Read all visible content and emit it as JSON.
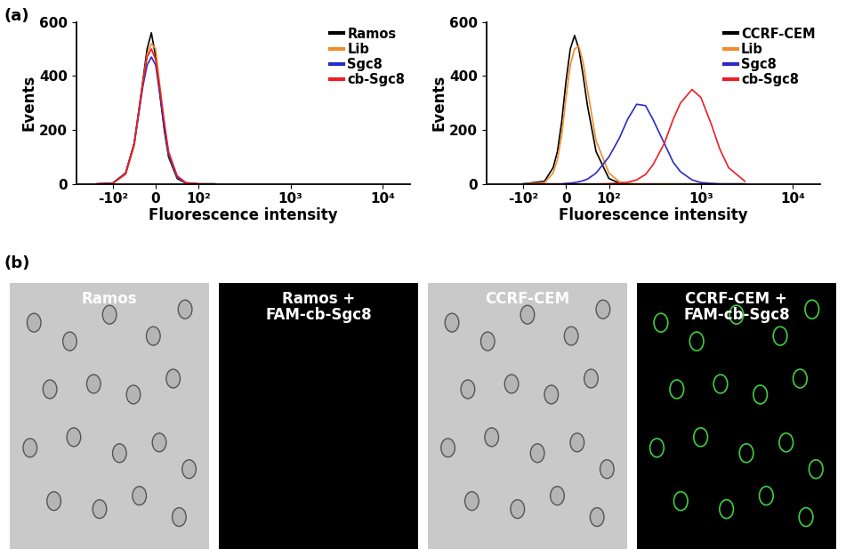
{
  "chart_data": [
    {
      "type": "line",
      "x_label": "Fluorescence intensity",
      "y_label": "Events",
      "log": "x",
      "legend": "upper right",
      "xlim": [
        -250,
        20000
      ],
      "xticks": [
        {
          "value": -100,
          "label": "-10²"
        },
        0,
        {
          "value": 100,
          "label": "10²"
        },
        {
          "value": 1000,
          "label": "10³"
        },
        {
          "value": 10000,
          "label": "10⁴"
        }
      ],
      "ylim": [
        0,
        600
      ],
      "yticks": [
        0,
        200,
        400,
        600
      ],
      "x": [
        -150,
        -100,
        -70,
        -50,
        -30,
        -20,
        -10,
        0,
        10,
        20,
        30,
        50,
        70,
        100,
        150
      ],
      "series": [
        {
          "name": "Ramos",
          "color": "#000000",
          "values": [
            0,
            3,
            40,
            150,
            380,
            500,
            560,
            470,
            330,
            200,
            100,
            20,
            3,
            0,
            0
          ]
        },
        {
          "name": "Lib",
          "color": "#f28c28",
          "values": [
            0,
            2,
            35,
            140,
            370,
            480,
            520,
            500,
            360,
            220,
            110,
            25,
            4,
            0,
            0
          ]
        },
        {
          "name": "Sgc8",
          "color": "#2a2ac8",
          "values": [
            0,
            3,
            40,
            150,
            360,
            440,
            470,
            440,
            330,
            210,
            110,
            25,
            4,
            0,
            0
          ]
        },
        {
          "name": "cb-Sgc8",
          "color": "#ee1c25",
          "values": [
            0,
            2,
            38,
            150,
            370,
            470,
            500,
            460,
            350,
            230,
            120,
            30,
            5,
            0,
            0
          ]
        }
      ]
    },
    {
      "type": "line",
      "x_label": "Fluorescence intensity",
      "y_label": "Events",
      "log": "x",
      "legend": "upper right",
      "xlim": [
        -250,
        20000
      ],
      "xticks": [
        {
          "value": -100,
          "label": "-10²"
        },
        0,
        {
          "value": 100,
          "label": "10²"
        },
        {
          "value": 1000,
          "label": "10³"
        },
        {
          "value": 10000,
          "label": "10⁴"
        }
      ],
      "ylim": [
        0,
        600
      ],
      "yticks": [
        0,
        200,
        400,
        600
      ],
      "x": [
        -100,
        -50,
        -30,
        -20,
        -10,
        0,
        10,
        20,
        30,
        40,
        50,
        70,
        100,
        130,
        160,
        200,
        250,
        300,
        400,
        500,
        600,
        800,
        1000,
        1300,
        1600,
        2000,
        3000
      ],
      "series": [
        {
          "name": "CCRF-CEM",
          "color": "#000000",
          "values": [
            0,
            10,
            60,
            120,
            230,
            380,
            500,
            550,
            500,
            400,
            290,
            120,
            20,
            3,
            0,
            0,
            0,
            0,
            0,
            0,
            0,
            0,
            0,
            0,
            0,
            0,
            0
          ]
        },
        {
          "name": "Lib",
          "color": "#f28c28",
          "values": [
            0,
            5,
            40,
            90,
            180,
            320,
            440,
            500,
            510,
            450,
            350,
            160,
            40,
            8,
            2,
            0,
            0,
            0,
            0,
            0,
            0,
            0,
            0,
            0,
            0,
            0,
            0
          ]
        },
        {
          "name": "Sgc8",
          "color": "#2a2ac8",
          "values": [
            0,
            0,
            0,
            0,
            0,
            2,
            3,
            5,
            8,
            12,
            18,
            40,
            100,
            170,
            240,
            295,
            290,
            240,
            150,
            80,
            45,
            15,
            5,
            2,
            0,
            0,
            0
          ]
        },
        {
          "name": "cb-Sgc8",
          "color": "#ee1c25",
          "values": [
            0,
            0,
            0,
            0,
            0,
            0,
            0,
            0,
            0,
            0,
            0,
            0,
            1,
            3,
            6,
            15,
            35,
            70,
            150,
            240,
            300,
            350,
            320,
            220,
            130,
            60,
            10
          ]
        }
      ]
    }
  ],
  "panel_labels": [
    "(a)",
    "(b)"
  ],
  "images": {
    "labels": [
      "Ramos",
      "Ramos +\nFAM-cb-Sgc8",
      "CCRF-CEM",
      "CCRF-CEM +\nFAM-cb-Sgc8"
    ]
  }
}
